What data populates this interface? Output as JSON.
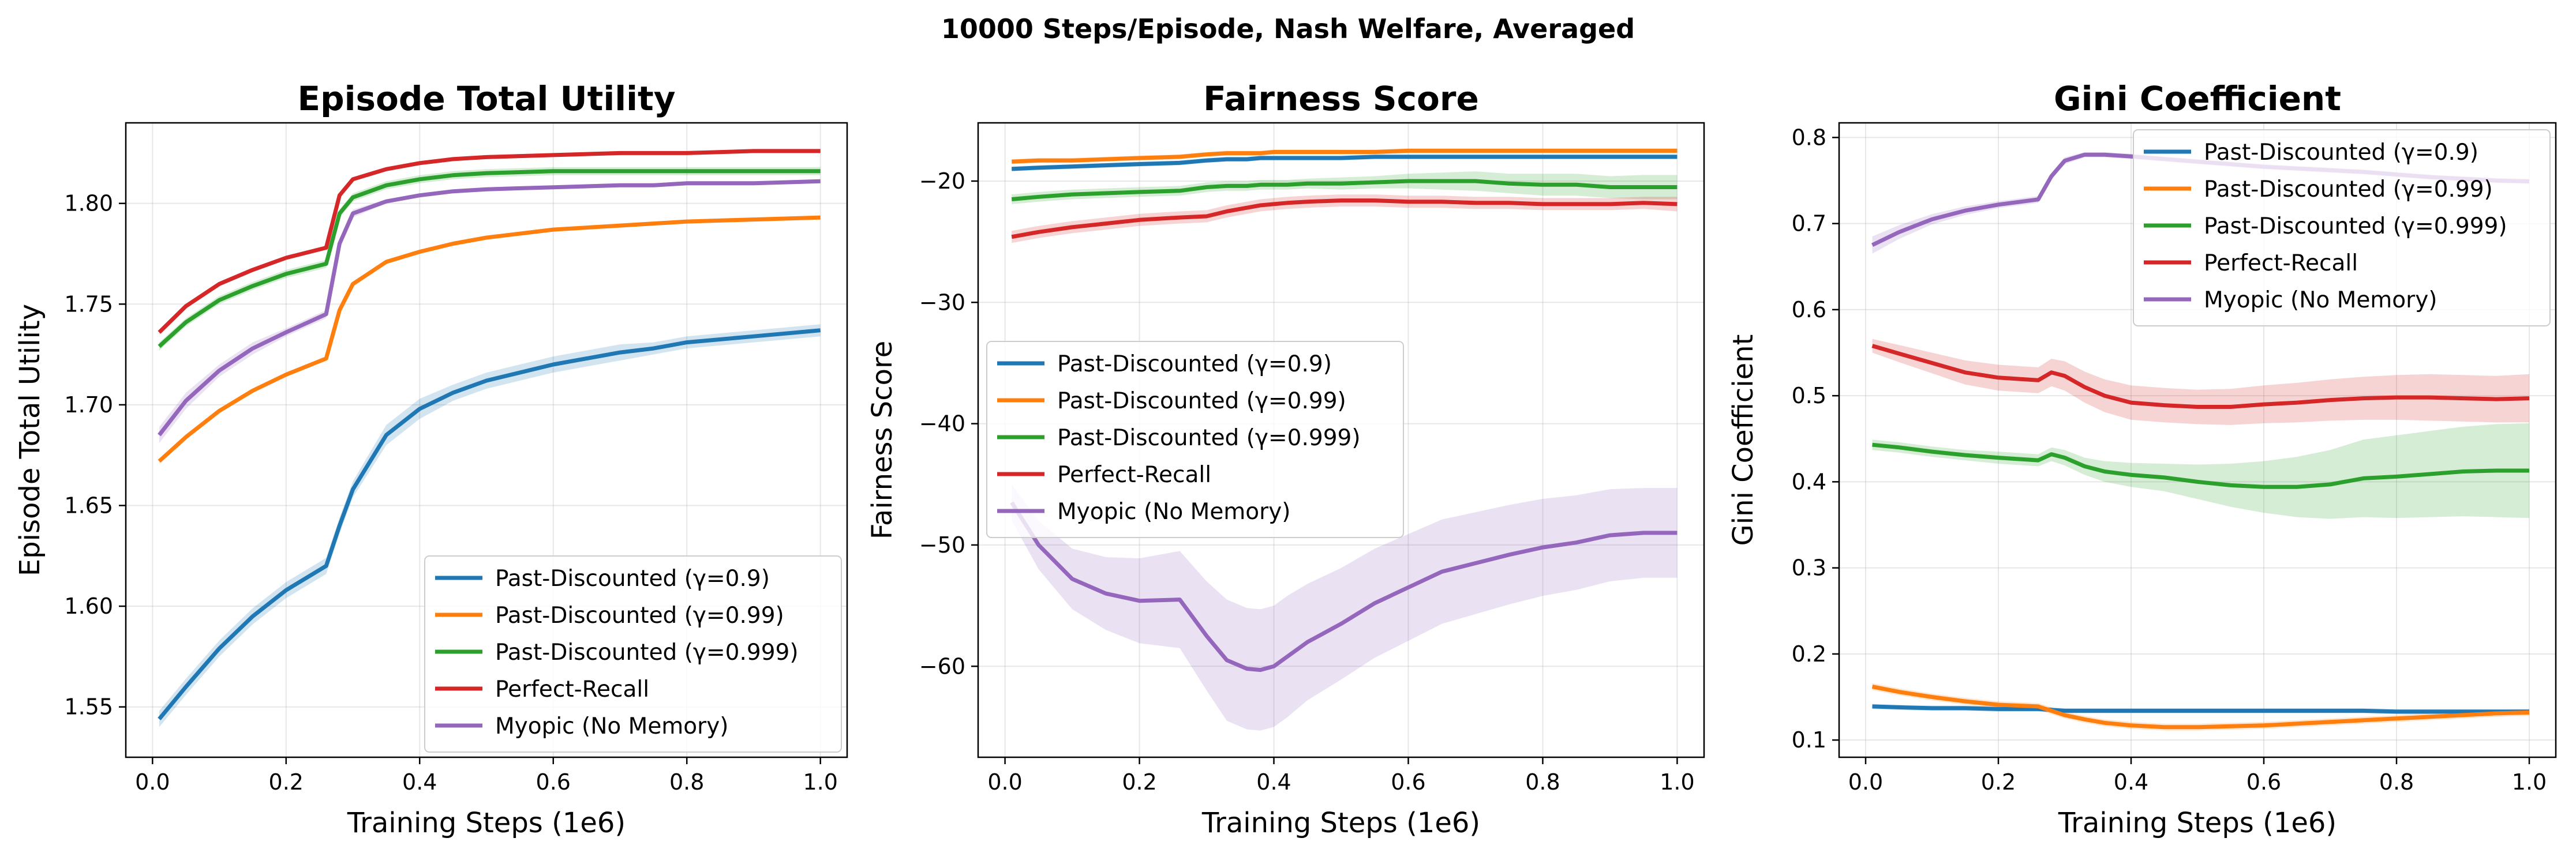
{
  "figure": {
    "suptitle": "10000 Steps/Episode, Nash Welfare, Averaged"
  },
  "colors": {
    "gamma_0_9": "#1f77b4",
    "gamma_0_99": "#ff7f0e",
    "gamma_0_999": "#2ca02c",
    "perfect_recall": "#d62728",
    "myopic": "#9467bd"
  },
  "chart_data": [
    {
      "type": "line",
      "title": "Episode Total Utility",
      "xlabel": "Training Steps (1e6)",
      "ylabel": "Episode Total Utility",
      "xlim": [
        -0.04,
        1.04
      ],
      "ylim": [
        1.525,
        1.84
      ],
      "xticks": [
        0.0,
        0.2,
        0.4,
        0.6,
        0.8,
        1.0
      ],
      "xtick_labels": [
        "0.0",
        "0.2",
        "0.4",
        "0.6",
        "0.8",
        "1.0"
      ],
      "yticks": [
        1.55,
        1.6,
        1.65,
        1.7,
        1.75,
        1.8
      ],
      "ytick_labels": [
        "1.55",
        "1.60",
        "1.65",
        "1.70",
        "1.75",
        "1.80"
      ],
      "legend_position": "lower-right",
      "x": [
        0.01,
        0.05,
        0.1,
        0.15,
        0.2,
        0.26,
        0.28,
        0.3,
        0.35,
        0.4,
        0.45,
        0.5,
        0.6,
        0.7,
        0.75,
        0.8,
        0.9,
        1.0
      ],
      "series": [
        {
          "name": "Past-Discounted (γ=0.9)",
          "color": "#1f77b4",
          "values": [
            1.544,
            1.56,
            1.579,
            1.595,
            1.608,
            1.62,
            1.64,
            1.658,
            1.685,
            1.698,
            1.706,
            1.712,
            1.72,
            1.726,
            1.728,
            1.731,
            1.734,
            1.737
          ],
          "band": [
            0.004,
            0.004,
            0.004,
            0.004,
            0.004,
            0.004,
            0.004,
            0.004,
            0.005,
            0.005,
            0.004,
            0.004,
            0.004,
            0.004,
            0.003,
            0.003,
            0.003,
            0.003
          ]
        },
        {
          "name": "Past-Discounted (γ=0.99)",
          "color": "#ff7f0e",
          "values": [
            1.672,
            1.684,
            1.697,
            1.707,
            1.715,
            1.723,
            1.747,
            1.76,
            1.771,
            1.776,
            1.78,
            1.783,
            1.787,
            1.789,
            1.79,
            1.791,
            1.792,
            1.793
          ],
          "band": [
            0.001,
            0.001,
            0.001,
            0.001,
            0.001,
            0.001,
            0.001,
            0.001,
            0.001,
            0.001,
            0.001,
            0.001,
            0.001,
            0.001,
            0.001,
            0.001,
            0.001,
            0.001
          ]
        },
        {
          "name": "Past-Discounted (γ=0.999)",
          "color": "#2ca02c",
          "values": [
            1.729,
            1.741,
            1.752,
            1.759,
            1.765,
            1.77,
            1.795,
            1.803,
            1.809,
            1.812,
            1.814,
            1.815,
            1.816,
            1.816,
            1.816,
            1.816,
            1.816,
            1.816
          ],
          "band": [
            0.002,
            0.002,
            0.002,
            0.002,
            0.002,
            0.002,
            0.002,
            0.002,
            0.002,
            0.002,
            0.002,
            0.002,
            0.002,
            0.002,
            0.002,
            0.002,
            0.002,
            0.002
          ]
        },
        {
          "name": "Perfect-Recall",
          "color": "#d62728",
          "values": [
            1.736,
            1.749,
            1.76,
            1.767,
            1.773,
            1.778,
            1.804,
            1.812,
            1.817,
            1.82,
            1.822,
            1.823,
            1.824,
            1.825,
            1.825,
            1.825,
            1.826,
            1.826
          ],
          "band": [
            0.001,
            0.001,
            0.001,
            0.001,
            0.001,
            0.001,
            0.001,
            0.001,
            0.001,
            0.001,
            0.001,
            0.001,
            0.001,
            0.001,
            0.001,
            0.001,
            0.001,
            0.001
          ]
        },
        {
          "name": "Myopic (No Memory)",
          "color": "#9467bd",
          "values": [
            1.685,
            1.702,
            1.717,
            1.728,
            1.736,
            1.745,
            1.78,
            1.795,
            1.801,
            1.804,
            1.806,
            1.807,
            1.808,
            1.809,
            1.809,
            1.81,
            1.81,
            1.811
          ],
          "band": [
            0.004,
            0.004,
            0.003,
            0.003,
            0.002,
            0.002,
            0.002,
            0.002,
            0.001,
            0.001,
            0.001,
            0.001,
            0.001,
            0.001,
            0.001,
            0.001,
            0.001,
            0.001
          ]
        }
      ]
    },
    {
      "type": "line",
      "title": "Fairness Score",
      "xlabel": "Training Steps (1e6)",
      "ylabel": "Fairness Score",
      "xlim": [
        -0.04,
        1.04
      ],
      "ylim": [
        -67.5,
        -15.2
      ],
      "xticks": [
        0.0,
        0.2,
        0.4,
        0.6,
        0.8,
        1.0
      ],
      "xtick_labels": [
        "0.0",
        "0.2",
        "0.4",
        "0.6",
        "0.8",
        "1.0"
      ],
      "yticks": [
        -60,
        -50,
        -40,
        -30,
        -20
      ],
      "ytick_labels": [
        "−60",
        "−50",
        "−40",
        "−30",
        "−20"
      ],
      "legend_position": "center-left",
      "x": [
        0.01,
        0.05,
        0.1,
        0.15,
        0.2,
        0.26,
        0.3,
        0.33,
        0.36,
        0.38,
        0.4,
        0.42,
        0.45,
        0.5,
        0.55,
        0.6,
        0.65,
        0.7,
        0.75,
        0.8,
        0.85,
        0.9,
        0.95,
        1.0
      ],
      "series": [
        {
          "name": "Past-Discounted (γ=0.9)",
          "color": "#1f77b4",
          "values": [
            -19.0,
            -18.9,
            -18.8,
            -18.7,
            -18.6,
            -18.5,
            -18.3,
            -18.2,
            -18.2,
            -18.1,
            -18.1,
            -18.1,
            -18.1,
            -18.1,
            -18.0,
            -18.0,
            -18.0,
            -18.0,
            -18.0,
            -18.0,
            -18.0,
            -18.0,
            -18.0,
            -18.0
          ],
          "band": [
            0.2,
            0.2,
            0.2,
            0.2,
            0.2,
            0.2,
            0.2,
            0.2,
            0.2,
            0.2,
            0.2,
            0.2,
            0.2,
            0.2,
            0.2,
            0.2,
            0.2,
            0.2,
            0.2,
            0.2,
            0.2,
            0.2,
            0.2,
            0.2
          ]
        },
        {
          "name": "Past-Discounted (γ=0.99)",
          "color": "#ff7f0e",
          "values": [
            -18.4,
            -18.3,
            -18.3,
            -18.2,
            -18.1,
            -18.0,
            -17.8,
            -17.7,
            -17.7,
            -17.7,
            -17.6,
            -17.6,
            -17.6,
            -17.6,
            -17.6,
            -17.5,
            -17.5,
            -17.5,
            -17.5,
            -17.5,
            -17.5,
            -17.5,
            -17.5,
            -17.5
          ],
          "band": [
            0.2,
            0.2,
            0.2,
            0.2,
            0.2,
            0.2,
            0.2,
            0.2,
            0.2,
            0.2,
            0.2,
            0.2,
            0.2,
            0.2,
            0.2,
            0.2,
            0.2,
            0.2,
            0.2,
            0.2,
            0.2,
            0.2,
            0.2,
            0.2
          ]
        },
        {
          "name": "Past-Discounted (γ=0.999)",
          "color": "#2ca02c",
          "values": [
            -21.5,
            -21.3,
            -21.1,
            -21.0,
            -20.9,
            -20.8,
            -20.5,
            -20.4,
            -20.4,
            -20.3,
            -20.3,
            -20.3,
            -20.2,
            -20.2,
            -20.1,
            -20.0,
            -20.0,
            -20.0,
            -20.2,
            -20.3,
            -20.3,
            -20.5,
            -20.5,
            -20.5
          ],
          "band": [
            0.4,
            0.4,
            0.4,
            0.4,
            0.4,
            0.4,
            0.4,
            0.4,
            0.4,
            0.4,
            0.4,
            0.4,
            0.4,
            0.5,
            0.5,
            0.6,
            0.7,
            0.8,
            0.8,
            0.9,
            0.9,
            0.9,
            1.0,
            1.0
          ]
        },
        {
          "name": "Perfect-Recall",
          "color": "#d62728",
          "values": [
            -24.6,
            -24.2,
            -23.8,
            -23.5,
            -23.2,
            -23.0,
            -22.9,
            -22.5,
            -22.2,
            -22.0,
            -21.9,
            -21.8,
            -21.7,
            -21.6,
            -21.6,
            -21.7,
            -21.7,
            -21.8,
            -21.8,
            -21.9,
            -21.9,
            -21.9,
            -21.8,
            -21.9
          ],
          "band": [
            0.5,
            0.5,
            0.5,
            0.5,
            0.5,
            0.5,
            0.5,
            0.5,
            0.5,
            0.5,
            0.5,
            0.5,
            0.5,
            0.5,
            0.5,
            0.5,
            0.5,
            0.5,
            0.5,
            0.5,
            0.5,
            0.5,
            0.5,
            0.6
          ]
        },
        {
          "name": "Myopic (No Memory)",
          "color": "#9467bd",
          "values": [
            -46.5,
            -50.0,
            -52.8,
            -54.0,
            -54.6,
            -54.5,
            -57.5,
            -59.5,
            -60.2,
            -60.3,
            -60.0,
            -59.2,
            -58.0,
            -56.5,
            -54.8,
            -53.5,
            -52.2,
            -51.5,
            -50.8,
            -50.2,
            -49.8,
            -49.2,
            -49.0,
            -49.0
          ],
          "band": [
            1.5,
            2.0,
            2.5,
            3.0,
            3.5,
            4.0,
            4.5,
            5.0,
            5.0,
            5.0,
            5.0,
            5.0,
            4.8,
            4.6,
            4.5,
            4.4,
            4.3,
            4.2,
            4.1,
            4.0,
            3.9,
            3.8,
            3.7,
            3.7
          ]
        }
      ]
    },
    {
      "type": "line",
      "title": "Gini Coefficient",
      "xlabel": "Training Steps (1e6)",
      "ylabel": "Gini Coefficient",
      "xlim": [
        -0.04,
        1.04
      ],
      "ylim": [
        0.08,
        0.817
      ],
      "xticks": [
        0.0,
        0.2,
        0.4,
        0.6,
        0.8,
        1.0
      ],
      "xtick_labels": [
        "0.0",
        "0.2",
        "0.4",
        "0.6",
        "0.8",
        "1.0"
      ],
      "yticks": [
        0.1,
        0.2,
        0.3,
        0.4,
        0.5,
        0.6,
        0.7,
        0.8
      ],
      "ytick_labels": [
        "0.1",
        "0.2",
        "0.3",
        "0.4",
        "0.5",
        "0.6",
        "0.7",
        "0.8"
      ],
      "legend_position": "upper-right",
      "x": [
        0.01,
        0.05,
        0.1,
        0.15,
        0.2,
        0.26,
        0.28,
        0.3,
        0.33,
        0.36,
        0.4,
        0.45,
        0.5,
        0.55,
        0.6,
        0.65,
        0.7,
        0.75,
        0.8,
        0.85,
        0.9,
        0.95,
        1.0
      ],
      "series": [
        {
          "name": "Past-Discounted (γ=0.9)",
          "color": "#1f77b4",
          "values": [
            0.139,
            0.138,
            0.137,
            0.137,
            0.136,
            0.136,
            0.135,
            0.134,
            0.134,
            0.134,
            0.134,
            0.134,
            0.134,
            0.134,
            0.134,
            0.134,
            0.134,
            0.134,
            0.133,
            0.133,
            0.133,
            0.133,
            0.133
          ],
          "band": [
            0.003,
            0.003,
            0.003,
            0.003,
            0.003,
            0.003,
            0.003,
            0.003,
            0.003,
            0.003,
            0.003,
            0.003,
            0.003,
            0.003,
            0.003,
            0.003,
            0.003,
            0.003,
            0.003,
            0.003,
            0.003,
            0.003,
            0.003
          ]
        },
        {
          "name": "Past-Discounted (γ=0.99)",
          "color": "#ff7f0e",
          "values": [
            0.162,
            0.156,
            0.15,
            0.145,
            0.141,
            0.139,
            0.134,
            0.129,
            0.124,
            0.12,
            0.117,
            0.115,
            0.115,
            0.116,
            0.117,
            0.119,
            0.121,
            0.123,
            0.125,
            0.127,
            0.129,
            0.131,
            0.132
          ],
          "band": [
            0.004,
            0.004,
            0.004,
            0.004,
            0.004,
            0.004,
            0.004,
            0.004,
            0.004,
            0.004,
            0.004,
            0.004,
            0.004,
            0.004,
            0.004,
            0.004,
            0.004,
            0.004,
            0.004,
            0.004,
            0.004,
            0.004,
            0.004
          ]
        },
        {
          "name": "Past-Discounted (γ=0.999)",
          "color": "#2ca02c",
          "values": [
            0.443,
            0.44,
            0.435,
            0.431,
            0.428,
            0.425,
            0.432,
            0.428,
            0.418,
            0.412,
            0.408,
            0.405,
            0.4,
            0.396,
            0.394,
            0.394,
            0.397,
            0.404,
            0.406,
            0.409,
            0.412,
            0.413,
            0.413
          ],
          "band": [
            0.006,
            0.006,
            0.006,
            0.006,
            0.007,
            0.007,
            0.008,
            0.009,
            0.01,
            0.012,
            0.014,
            0.016,
            0.02,
            0.025,
            0.03,
            0.035,
            0.04,
            0.045,
            0.048,
            0.05,
            0.052,
            0.054,
            0.055
          ]
        },
        {
          "name": "Perfect-Recall",
          "color": "#d62728",
          "values": [
            0.558,
            0.549,
            0.538,
            0.527,
            0.521,
            0.518,
            0.527,
            0.523,
            0.51,
            0.5,
            0.492,
            0.489,
            0.487,
            0.487,
            0.49,
            0.492,
            0.495,
            0.497,
            0.498,
            0.498,
            0.497,
            0.496,
            0.497
          ],
          "band": [
            0.008,
            0.01,
            0.012,
            0.014,
            0.015,
            0.015,
            0.016,
            0.017,
            0.018,
            0.019,
            0.02,
            0.02,
            0.02,
            0.021,
            0.022,
            0.023,
            0.024,
            0.025,
            0.026,
            0.027,
            0.027,
            0.027,
            0.028
          ]
        },
        {
          "name": "Myopic (No Memory)",
          "color": "#9467bd",
          "values": [
            0.675,
            0.69,
            0.705,
            0.715,
            0.722,
            0.728,
            0.755,
            0.773,
            0.78,
            0.78,
            0.778,
            0.775,
            0.772,
            0.769,
            0.766,
            0.764,
            0.762,
            0.76,
            0.757,
            0.754,
            0.752,
            0.75,
            0.749
          ],
          "band": [
            0.01,
            0.008,
            0.006,
            0.005,
            0.004,
            0.004,
            0.004,
            0.004,
            0.003,
            0.003,
            0.003,
            0.003,
            0.003,
            0.003,
            0.003,
            0.003,
            0.003,
            0.003,
            0.003,
            0.003,
            0.003,
            0.003,
            0.003
          ]
        }
      ]
    }
  ]
}
